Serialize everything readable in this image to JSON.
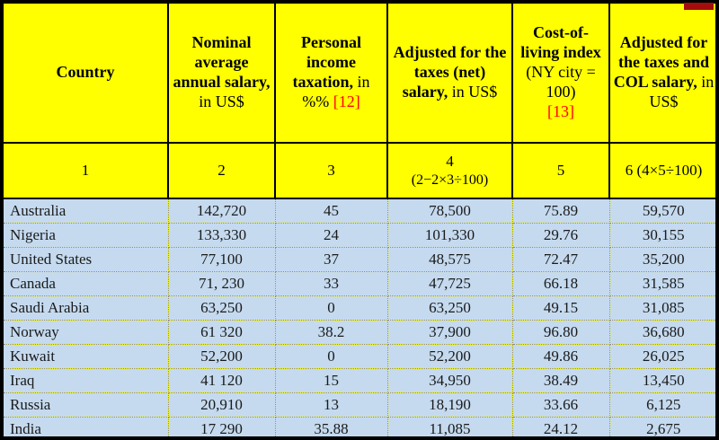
{
  "colors": {
    "header_bg": "#FFFF00",
    "row_bg": "#C5DAEF",
    "reference_red": "#FF0000",
    "border_black": "#000000",
    "corner_marker_red": "#A50D0D"
  },
  "header": {
    "columns": [
      {
        "bold": "Country",
        "rest": "",
        "ref": ""
      },
      {
        "bold": "Nominal average annual salary,",
        "rest": " in US$",
        "ref": ""
      },
      {
        "bold": "Personal income taxation,",
        "rest": " in %% ",
        "ref": "[12]"
      },
      {
        "bold": "Adjusted for the taxes (net) salary,",
        "rest": " in US$",
        "ref": ""
      },
      {
        "bold": "Cost-of-living index",
        "rest": " (NY city = 100)",
        "ref": "[13]"
      },
      {
        "bold": "Adjusted for the taxes and COL salary,",
        "rest": " in US$",
        "ref": ""
      }
    ],
    "numbers": [
      {
        "line1": "1",
        "line2": ""
      },
      {
        "line1": "2",
        "line2": ""
      },
      {
        "line1": "3",
        "line2": ""
      },
      {
        "line1": "4",
        "line2": "(2−2×3÷100)"
      },
      {
        "line1": "5",
        "line2": ""
      },
      {
        "line1": "6 (4×5÷100)",
        "line2": ""
      }
    ]
  },
  "rows": [
    [
      "Australia",
      "142,720",
      "45",
      "78,500",
      "75.89",
      "59,570"
    ],
    [
      "Nigeria",
      "133,330",
      "24",
      "101,330",
      "29.76",
      "30,155"
    ],
    [
      "United States",
      "77,100",
      "37",
      "48,575",
      "72.47",
      "35,200"
    ],
    [
      "Canada",
      "71, 230",
      "33",
      "47,725",
      "66.18",
      "31,585"
    ],
    [
      "Saudi Arabia",
      "63,250",
      "0",
      "63,250",
      "49.15",
      "31,085"
    ],
    [
      "Norway",
      "61 320",
      "38.2",
      "37,900",
      "96.80",
      "36,680"
    ],
    [
      "Kuwait",
      "52,200",
      "0",
      "52,200",
      "49.86",
      "26,025"
    ],
    [
      "Iraq",
      "41 120",
      "15",
      "34,950",
      "38.49",
      "13,450"
    ],
    [
      "Russia",
      "20,910",
      "13",
      "18,190",
      "33.66",
      "6,125"
    ],
    [
      "India",
      "17 290",
      "35.88",
      "11,085",
      "24.12",
      "2,675"
    ]
  ]
}
